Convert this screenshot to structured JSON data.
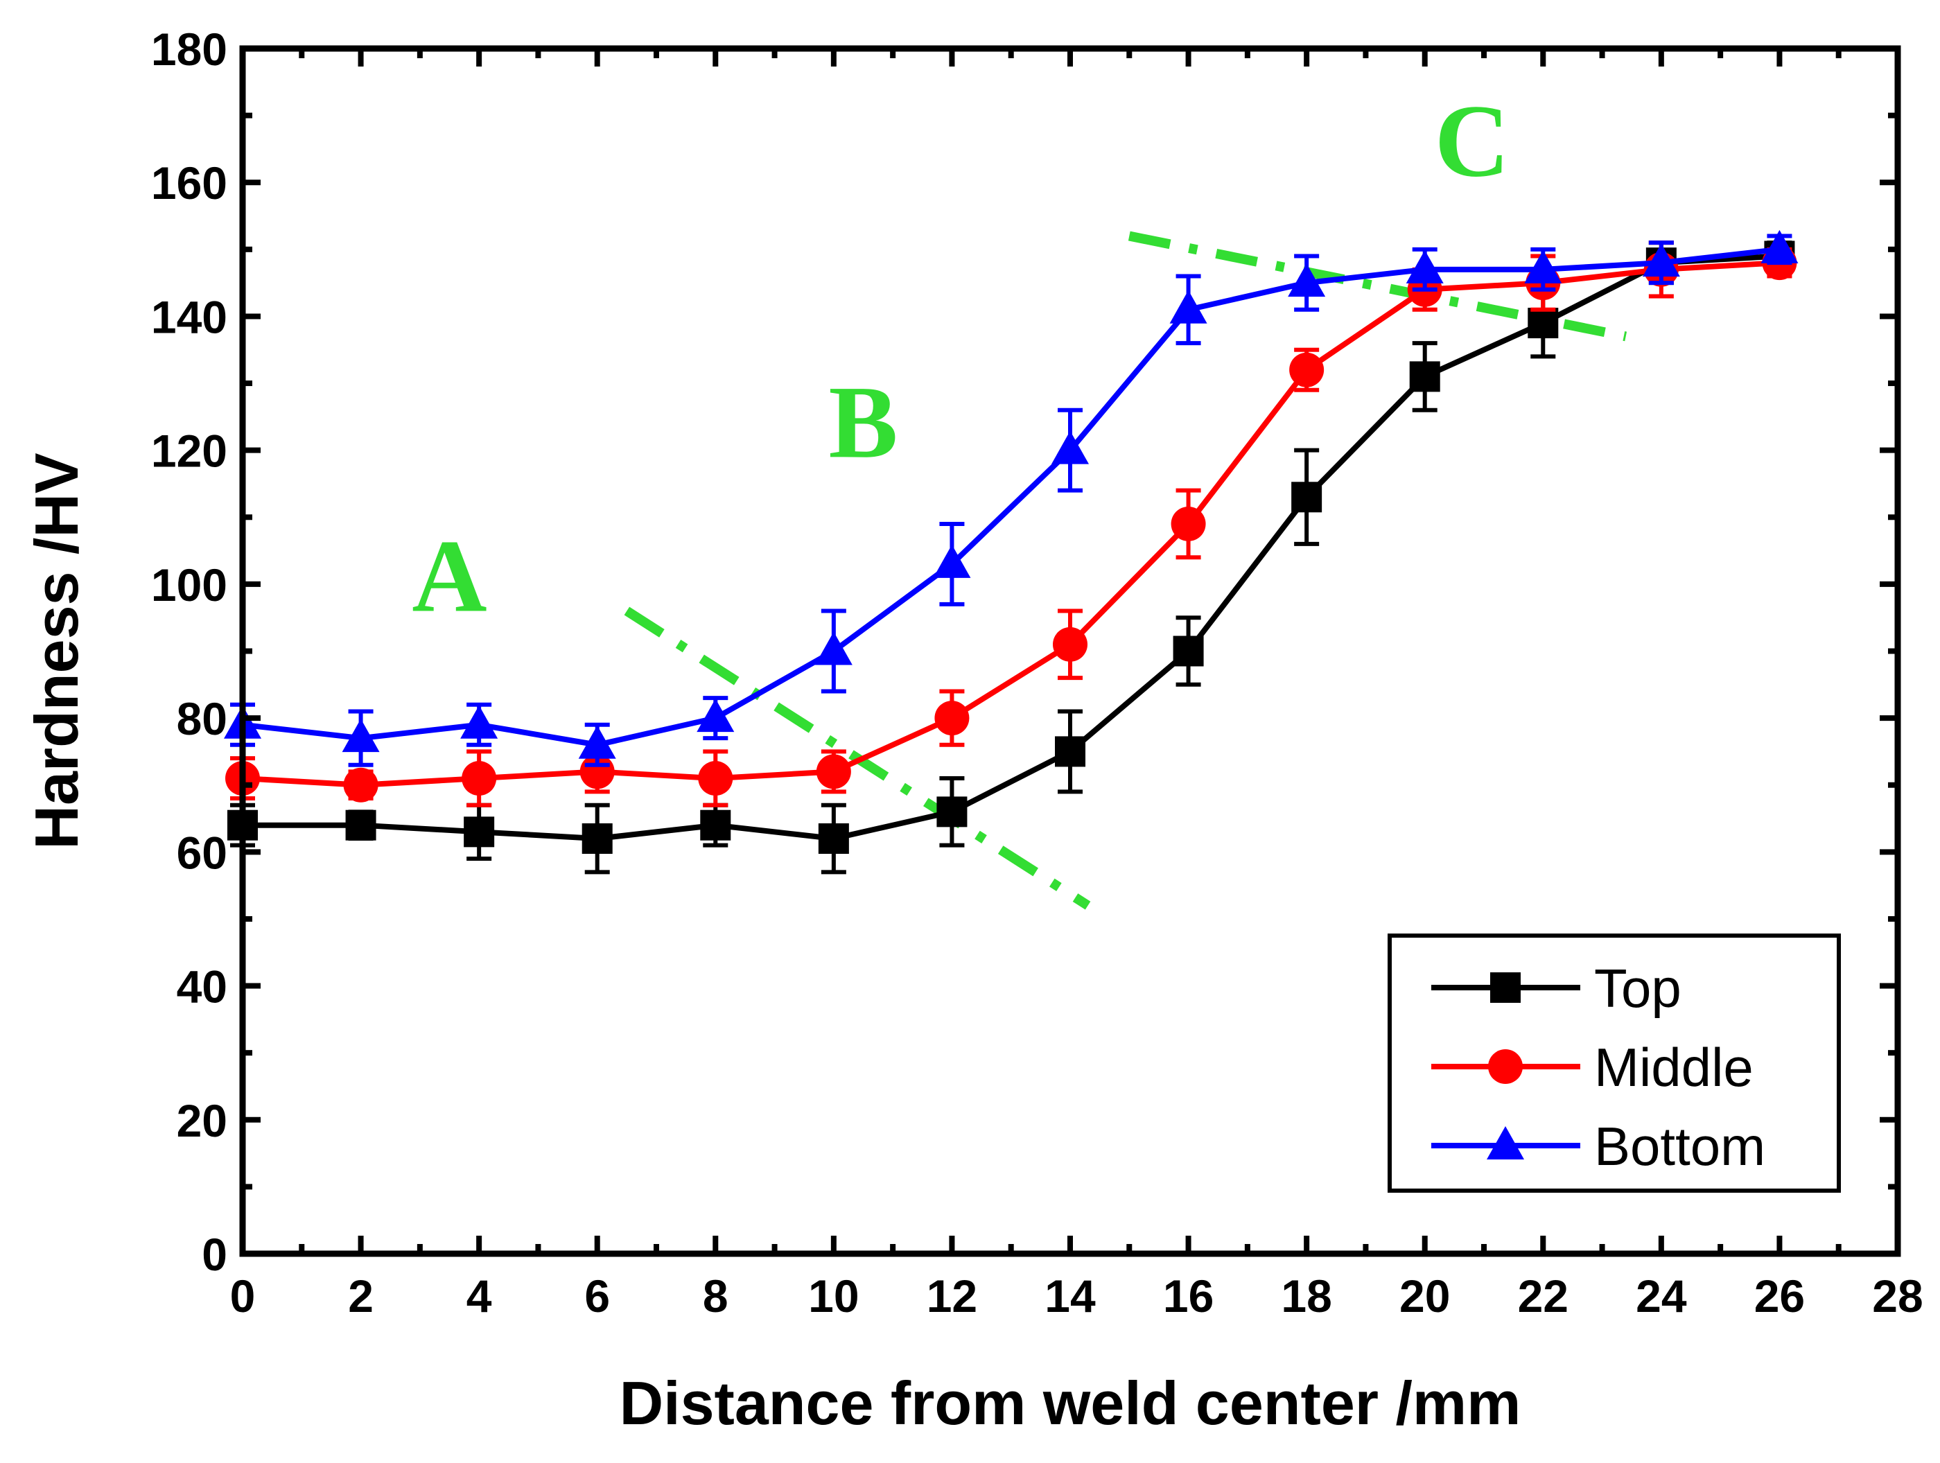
{
  "chart_data": {
    "type": "line",
    "title": "",
    "xlabel": "Distance from weld center /mm",
    "ylabel": "Hardness /HV",
    "xlim": [
      0,
      28
    ],
    "ylim": [
      0,
      180
    ],
    "xticks": [
      0,
      2,
      4,
      6,
      8,
      10,
      12,
      14,
      16,
      18,
      20,
      22,
      24,
      26,
      28
    ],
    "yticks": [
      0,
      20,
      40,
      60,
      80,
      100,
      120,
      140,
      160,
      180
    ],
    "x": [
      0,
      2,
      4,
      6,
      8,
      10,
      12,
      14,
      16,
      18,
      20,
      22,
      24,
      26
    ],
    "series": [
      {
        "name": "Top",
        "color": "#000000",
        "marker": "square",
        "values": [
          64,
          64,
          63,
          62,
          64,
          62,
          66,
          75,
          90,
          113,
          131,
          139,
          148,
          149
        ],
        "errors": [
          3,
          2,
          4,
          5,
          3,
          5,
          5,
          6,
          5,
          7,
          5,
          5,
          3,
          2
        ]
      },
      {
        "name": "Middle",
        "color": "#ff0000",
        "marker": "circle",
        "values": [
          71,
          70,
          71,
          72,
          71,
          72,
          80,
          91,
          109,
          132,
          144,
          145,
          147,
          148
        ],
        "errors": [
          3,
          2,
          4,
          3,
          4,
          3,
          4,
          5,
          5,
          3,
          3,
          4,
          4,
          2
        ]
      },
      {
        "name": "Bottom",
        "color": "#0000ff",
        "marker": "triangle",
        "values": [
          79,
          77,
          79,
          76,
          80,
          90,
          103,
          120,
          141,
          145,
          147,
          147,
          148,
          150
        ],
        "errors": [
          3,
          4,
          3,
          3,
          3,
          6,
          6,
          6,
          5,
          4,
          3,
          3,
          3,
          2
        ]
      }
    ],
    "region_labels": [
      {
        "text": "A",
        "x": 3.5,
        "y": 96,
        "color": "#33dd33"
      },
      {
        "text": "B",
        "x": 10.5,
        "y": 119,
        "color": "#33dd33"
      },
      {
        "text": "C",
        "x": 20.8,
        "y": 161,
        "color": "#33dd33"
      }
    ],
    "boundary_lines": [
      {
        "from": [
          6.5,
          96
        ],
        "to": [
          14.3,
          52
        ],
        "color": "#33dd33"
      },
      {
        "from": [
          15.0,
          152
        ],
        "to": [
          23.4,
          137
        ],
        "color": "#33dd33"
      }
    ],
    "legend": {
      "position": "bottom-right",
      "entries": [
        "Top",
        "Middle",
        "Bottom"
      ]
    },
    "grid": false
  }
}
